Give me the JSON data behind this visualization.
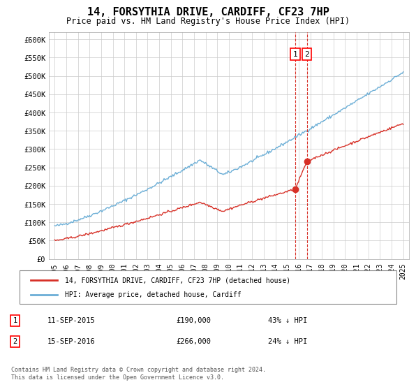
{
  "title": "14, FORSYTHIA DRIVE, CARDIFF, CF23 7HP",
  "subtitle": "Price paid vs. HM Land Registry's House Price Index (HPI)",
  "ylabel_ticks": [
    "£0",
    "£50K",
    "£100K",
    "£150K",
    "£200K",
    "£250K",
    "£300K",
    "£350K",
    "£400K",
    "£450K",
    "£500K",
    "£550K",
    "£600K"
  ],
  "ylim": [
    0,
    620000
  ],
  "yticks": [
    0,
    50000,
    100000,
    150000,
    200000,
    250000,
    300000,
    350000,
    400000,
    450000,
    500000,
    550000,
    600000
  ],
  "hpi_color": "#6baed6",
  "price_color": "#d73027",
  "marker1_date": 2015.7,
  "marker2_date": 2016.7,
  "marker1_price": 190000,
  "marker2_price": 266000,
  "annotation1": "1",
  "annotation2": "2",
  "legend_label1": "14, FORSYTHIA DRIVE, CARDIFF, CF23 7HP (detached house)",
  "legend_label2": "HPI: Average price, detached house, Cardiff",
  "table_row1": [
    "1",
    "11-SEP-2015",
    "£190,000",
    "43% ↓ HPI"
  ],
  "table_row2": [
    "2",
    "15-SEP-2016",
    "£266,000",
    "24% ↓ HPI"
  ],
  "footnote": "Contains HM Land Registry data © Crown copyright and database right 2024.\nThis data is licensed under the Open Government Licence v3.0.",
  "background_color": "#ffffff",
  "grid_color": "#cccccc"
}
